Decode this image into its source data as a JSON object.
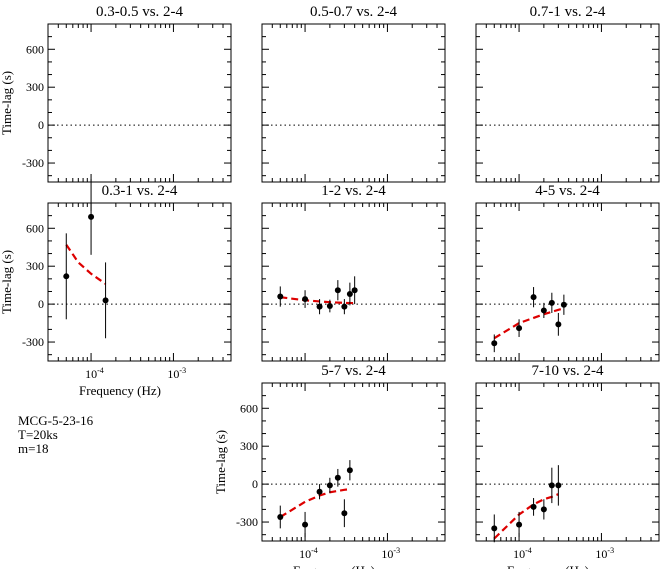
{
  "colors": {
    "model": "#dd0000",
    "data": "#000000"
  },
  "annotation": [
    "MCG-5-23-16",
    "T=20ks",
    "m=18"
  ],
  "chart_data": [
    {
      "type": "scatter",
      "title": "0.3-0.5 vs. 2-4",
      "ylabel": "Time-lag (s)",
      "xlabel": "",
      "xscale": "log",
      "xlim": [
        3e-05,
        0.005
      ],
      "ylim": [
        -450,
        800
      ],
      "yticks": [
        600,
        300,
        0,
        -300
      ],
      "points": [],
      "model": []
    },
    {
      "type": "scatter",
      "title": "0.5-0.7 vs. 2-4",
      "ylabel": "",
      "xlabel": "",
      "xscale": "log",
      "xlim": [
        3e-05,
        0.005
      ],
      "ylim": [
        -450,
        800
      ],
      "yticks": [],
      "points": [],
      "model": []
    },
    {
      "type": "scatter",
      "title": "0.7-1 vs. 2-4",
      "ylabel": "",
      "xlabel": "",
      "xscale": "log",
      "xlim": [
        3e-05,
        0.005
      ],
      "ylim": [
        -450,
        800
      ],
      "yticks": [],
      "points": [],
      "model": []
    },
    {
      "type": "scatter",
      "title": "0.3-1 vs. 2-4",
      "ylabel": "Time-lag (s)",
      "xlabel": "Frequency (Hz)",
      "xscale": "log",
      "xlim": [
        3e-05,
        0.005
      ],
      "ylim": [
        -450,
        800
      ],
      "yticks": [
        600,
        300,
        0,
        -300
      ],
      "xticks": [
        "10^-4",
        "10^-3"
      ],
      "points": [
        {
          "x": 5e-05,
          "y": 220,
          "err": 340
        },
        {
          "x": 0.0001,
          "y": 690,
          "err": 300
        },
        {
          "x": 0.00015,
          "y": 30,
          "err": 300
        }
      ],
      "model": [
        {
          "x": 5e-05,
          "y": 470
        },
        {
          "x": 7e-05,
          "y": 330
        },
        {
          "x": 0.0001,
          "y": 240
        },
        {
          "x": 0.00015,
          "y": 160
        }
      ]
    },
    {
      "type": "scatter",
      "title": "1-2 vs. 2-4",
      "ylabel": "",
      "xlabel": "",
      "xscale": "log",
      "xlim": [
        3e-05,
        0.005
      ],
      "ylim": [
        -450,
        800
      ],
      "yticks": [],
      "points": [
        {
          "x": 5e-05,
          "y": 60,
          "err": 80
        },
        {
          "x": 0.0001,
          "y": 40,
          "err": 70
        },
        {
          "x": 0.00015,
          "y": -20,
          "err": 60
        },
        {
          "x": 0.0002,
          "y": -15,
          "err": 50
        },
        {
          "x": 0.00025,
          "y": 110,
          "err": 80
        },
        {
          "x": 0.0003,
          "y": -20,
          "err": 60
        },
        {
          "x": 0.00035,
          "y": 80,
          "err": 90
        },
        {
          "x": 0.0004,
          "y": 110,
          "err": 110
        }
      ],
      "model": [
        {
          "x": 5e-05,
          "y": 55
        },
        {
          "x": 0.0001,
          "y": 30
        },
        {
          "x": 0.0002,
          "y": 15
        },
        {
          "x": 0.0003,
          "y": 10
        },
        {
          "x": 0.0004,
          "y": 8
        }
      ]
    },
    {
      "type": "scatter",
      "title": "4-5 vs. 2-4",
      "ylabel": "",
      "xlabel": "",
      "xscale": "log",
      "xlim": [
        3e-05,
        0.005
      ],
      "ylim": [
        -450,
        800
      ],
      "yticks": [],
      "points": [
        {
          "x": 5e-05,
          "y": -310,
          "err": 70
        },
        {
          "x": 0.0001,
          "y": -190,
          "err": 70
        },
        {
          "x": 0.00015,
          "y": 55,
          "err": 80
        },
        {
          "x": 0.0002,
          "y": -50,
          "err": 60
        },
        {
          "x": 0.00025,
          "y": 10,
          "err": 80
        },
        {
          "x": 0.0003,
          "y": -160,
          "err": 90
        },
        {
          "x": 0.00035,
          "y": -5,
          "err": 80
        }
      ],
      "model": [
        {
          "x": 5e-05,
          "y": -270
        },
        {
          "x": 0.0001,
          "y": -150
        },
        {
          "x": 0.0002,
          "y": -80
        },
        {
          "x": 0.0003,
          "y": -45
        },
        {
          "x": 0.00035,
          "y": -35
        }
      ]
    },
    {
      "type": "scatter",
      "title": "5-7 vs. 2-4",
      "ylabel": "Time-lag (s)",
      "xlabel": "Frequency (Hz)",
      "xscale": "log",
      "xlim": [
        3e-05,
        0.005
      ],
      "ylim": [
        -450,
        800
      ],
      "yticks": [
        600,
        300,
        0,
        -300
      ],
      "xticks": [
        "10^-4",
        "10^-3"
      ],
      "points": [
        {
          "x": 5e-05,
          "y": -260,
          "err": 90
        },
        {
          "x": 0.0001,
          "y": -320,
          "err": 100
        },
        {
          "x": 0.00015,
          "y": -60,
          "err": 60
        },
        {
          "x": 0.0002,
          "y": -10,
          "err": 60
        },
        {
          "x": 0.00025,
          "y": 50,
          "err": 70
        },
        {
          "x": 0.0003,
          "y": -230,
          "err": 110
        },
        {
          "x": 0.00035,
          "y": 110,
          "err": 80
        }
      ],
      "model": [
        {
          "x": 5e-05,
          "y": -260
        },
        {
          "x": 0.0001,
          "y": -140
        },
        {
          "x": 0.00015,
          "y": -90
        },
        {
          "x": 0.0002,
          "y": -65
        },
        {
          "x": 0.0003,
          "y": -45
        },
        {
          "x": 0.00035,
          "y": -40
        }
      ]
    },
    {
      "type": "scatter",
      "title": "7-10 vs. 2-4",
      "ylabel": "",
      "xlabel": "Frequency (Hz)",
      "xscale": "log",
      "xlim": [
        3e-05,
        0.005
      ],
      "ylim": [
        -450,
        800
      ],
      "yticks": [],
      "xticks": [
        "10^-4",
        "10^-3"
      ],
      "points": [
        {
          "x": 5e-05,
          "y": -350,
          "err": 110
        },
        {
          "x": 0.0001,
          "y": -320,
          "err": 100
        },
        {
          "x": 0.00015,
          "y": -180,
          "err": 70
        },
        {
          "x": 0.0002,
          "y": -200,
          "err": 80
        },
        {
          "x": 0.00025,
          "y": -10,
          "err": 140
        },
        {
          "x": 0.0003,
          "y": -10,
          "err": 160
        }
      ],
      "model": [
        {
          "x": 5e-05,
          "y": -430
        },
        {
          "x": 0.0001,
          "y": -240
        },
        {
          "x": 0.00015,
          "y": -160
        },
        {
          "x": 0.0002,
          "y": -120
        },
        {
          "x": 0.00025,
          "y": -100
        },
        {
          "x": 0.0003,
          "y": -80
        }
      ]
    }
  ]
}
